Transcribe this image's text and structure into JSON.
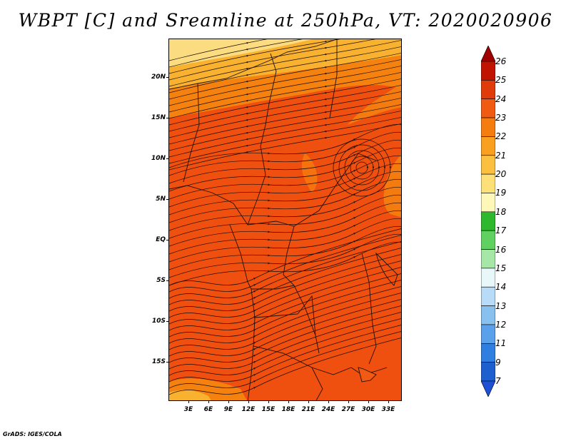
{
  "title": "WBPT [C] and Sreamline at 250hPa, VT: 2020020906",
  "credit": "GrADS: IGES/COLA",
  "map": {
    "lon_range": [
      0,
      35
    ],
    "lat_range": [
      -20,
      25
    ],
    "y_axis_labels": [
      "20N",
      "15N",
      "10N",
      "5N",
      "EQ",
      "5S",
      "10S",
      "15S"
    ],
    "x_axis_labels": [
      "3E",
      "6E",
      "9E",
      "12E",
      "15E",
      "18E",
      "21E",
      "24E",
      "27E",
      "30E",
      "33E"
    ],
    "fill_colors": {
      "dominant": "#f0500f",
      "warm_band": "#f5820f",
      "northern_band": "#f8b230",
      "cool_edge": "#fbdc80",
      "boundary": "#201008",
      "streamline": "#1a0a04"
    }
  },
  "colorbar": {
    "labels": [
      "26",
      "25",
      "24",
      "23",
      "22",
      "21",
      "20",
      "19",
      "18",
      "17",
      "16",
      "15",
      "14",
      "13",
      "12",
      "11",
      "9",
      "7"
    ],
    "colors": [
      "#a00000",
      "#c01400",
      "#e03c0a",
      "#f05a12",
      "#f57d10",
      "#f9a020",
      "#fbc040",
      "#fde078",
      "#fdf8b8",
      "#2eb82e",
      "#60d060",
      "#a6e6a6",
      "#e8f8f8",
      "#b8dcf8",
      "#88c0f0",
      "#5aa0ea",
      "#2f7fe0",
      "#1e5fd0",
      "#1e50d6"
    ]
  }
}
